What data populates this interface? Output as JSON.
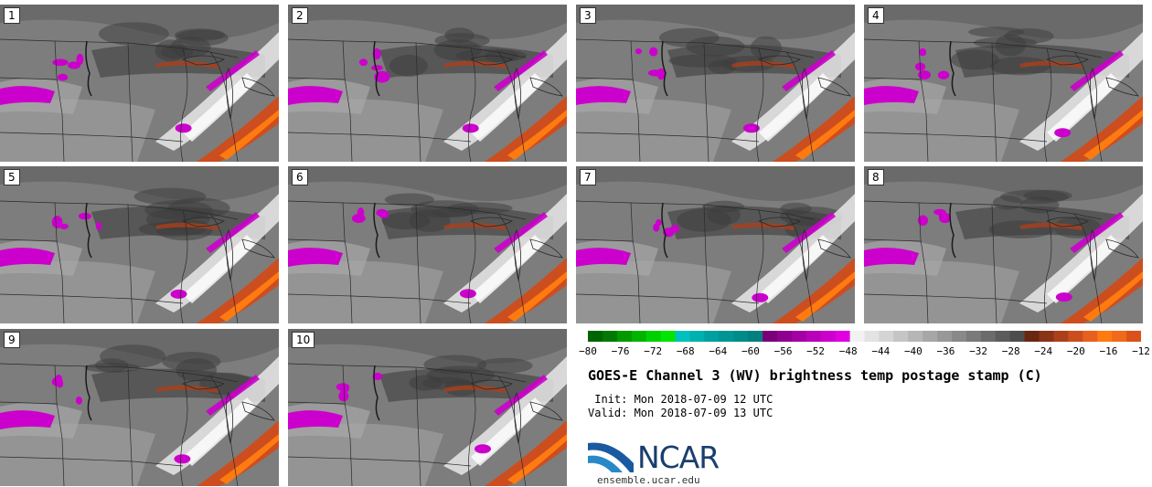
{
  "panels": [
    {
      "label": "1"
    },
    {
      "label": "2"
    },
    {
      "label": "3"
    },
    {
      "label": "4"
    },
    {
      "label": "5"
    },
    {
      "label": "6"
    },
    {
      "label": "7"
    },
    {
      "label": "8"
    },
    {
      "label": "9"
    },
    {
      "label": "10"
    }
  ],
  "colorbar": {
    "ticks": [
      "−80",
      "−76",
      "−72",
      "−68",
      "−64",
      "−60",
      "−56",
      "−52",
      "−48",
      "−44",
      "−40",
      "−36",
      "−32",
      "−28",
      "−24",
      "−20",
      "−16",
      "−12"
    ],
    "colors": [
      "#006400",
      "#007a00",
      "#009900",
      "#00b400",
      "#00d000",
      "#00e600",
      "#00c0c0",
      "#00b0b0",
      "#00a0a0",
      "#009595",
      "#008b8b",
      "#007f7f",
      "#7a007a",
      "#8e008e",
      "#a300a3",
      "#b800b8",
      "#cc00cc",
      "#e000e0",
      "#f2f2f2",
      "#e3e3e3",
      "#d4d4d4",
      "#c5c5c5",
      "#b6b6b6",
      "#a7a7a7",
      "#989898",
      "#898989",
      "#7a7a7a",
      "#6b6b6b",
      "#5c5c5c",
      "#4d4d4d",
      "#6b2612",
      "#8a3317",
      "#ab401c",
      "#cc4e1f",
      "#e86020",
      "#ff7a10",
      "#f06a1a",
      "#d8521a"
    ]
  },
  "title": "GOES-E Channel 3 (WV) brightness temp postage stamp (C)",
  "init": " Init: Mon 2018-07-09 12 UTC",
  "valid": "Valid: Mon 2018-07-09 13 UTC",
  "logo_text": "NCAR",
  "url": "ensemble.ucar.edu"
}
